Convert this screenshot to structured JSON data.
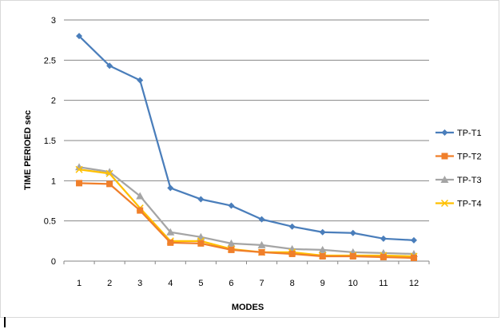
{
  "chart_data": {
    "type": "line",
    "categories": [
      "1",
      "2",
      "3",
      "4",
      "5",
      "6",
      "7",
      "8",
      "9",
      "10",
      "11",
      "12"
    ],
    "series": [
      {
        "name": "TP-T1",
        "color": "#4a7ebb",
        "marker": "diamond",
        "values": [
          2.8,
          2.43,
          2.25,
          0.91,
          0.77,
          0.69,
          0.52,
          0.43,
          0.36,
          0.35,
          0.28,
          0.26
        ]
      },
      {
        "name": "TP-T2",
        "color": "#f07f2a",
        "marker": "square",
        "values": [
          0.97,
          0.96,
          0.63,
          0.23,
          0.22,
          0.14,
          0.11,
          0.09,
          0.06,
          0.06,
          0.05,
          0.04
        ]
      },
      {
        "name": "TP-T3",
        "color": "#a5a5a5",
        "marker": "triangle",
        "values": [
          1.17,
          1.11,
          0.81,
          0.36,
          0.3,
          0.22,
          0.2,
          0.15,
          0.14,
          0.11,
          0.1,
          0.09
        ]
      },
      {
        "name": "TP-T4",
        "color": "#ffc000",
        "marker": "x",
        "values": [
          1.14,
          1.09,
          0.66,
          0.25,
          0.25,
          0.15,
          0.11,
          0.11,
          0.07,
          0.07,
          0.07,
          0.06
        ]
      }
    ],
    "yticks": [
      "0",
      "0.5",
      "1",
      "1.5",
      "2",
      "2.5",
      "3"
    ],
    "ylim": [
      0,
      3
    ],
    "xlabel": "MODES",
    "ylabel": "TIME PERIOED  sec",
    "grid": "horizontal",
    "legend": "right"
  }
}
